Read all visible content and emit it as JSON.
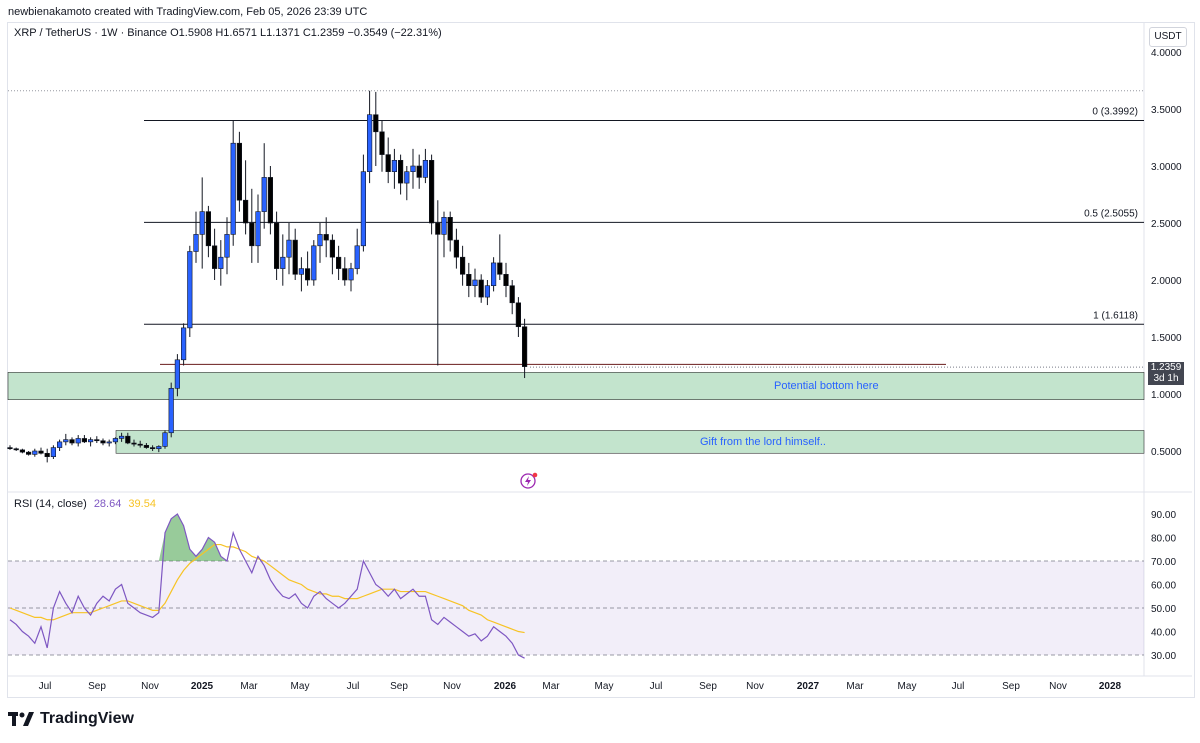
{
  "header": {
    "attribution": "newbienakamoto created with TradingView.com, Feb 05, 2026 23:39 UTC"
  },
  "legend": {
    "symbol": "XRP / TetherUS · 1W · Binance",
    "ohlc": "O1.5908  H1.6571  L1.1371  C1.2359  −0.3549 (−22.31%)"
  },
  "currency": "USDT",
  "price_axis": [
    "4.0000",
    "3.5000",
    "3.0000",
    "2.5000",
    "2.0000",
    "1.5000",
    "1.0000",
    "0.5000"
  ],
  "current_price": {
    "value": "1.2359",
    "countdown": "3d 1h"
  },
  "fib_levels": [
    {
      "label": "0 (3.3992)",
      "price": 3.3992
    },
    {
      "label": "0.5 (2.5055)",
      "price": 2.5055
    },
    {
      "label": "1 (1.6118)",
      "price": 1.6118
    }
  ],
  "zones": [
    {
      "label": "Potential bottom here",
      "top": 1.19,
      "bottom": 0.95,
      "color": "#b9dfc4"
    },
    {
      "label": "Gift from the lord himself..",
      "top": 0.68,
      "bottom": 0.48,
      "color": "#b9dfc4"
    }
  ],
  "rsi": {
    "title": "RSI (14, close)",
    "value": "28.64",
    "ma_value": "39.54",
    "axis": [
      "90.00",
      "80.00",
      "70.00",
      "60.00",
      "50.00",
      "40.00",
      "30.00"
    ]
  },
  "time_axis": [
    "Jul",
    "Sep",
    "Nov",
    "2025",
    "Mar",
    "May",
    "Jul",
    "Sep",
    "Nov",
    "2026",
    "Mar",
    "May",
    "Jul",
    "Sep",
    "Nov",
    "2027",
    "Mar",
    "May",
    "Jul",
    "Sep",
    "Nov",
    "2028"
  ],
  "brand": "TradingView",
  "colors": {
    "up": "#2962ff",
    "down": "#000000",
    "rsi_line": "#7e57c2",
    "rsi_ma": "#f7c325",
    "zone": "#b9dfc4"
  },
  "chart_data": {
    "type": "candlestick",
    "title": "XRP / TetherUS · 1W · Binance",
    "ylim": [
      0.3,
      4.2
    ],
    "candles": [
      [
        0.53,
        0.55,
        0.51,
        0.52
      ],
      [
        0.52,
        0.53,
        0.5,
        0.51
      ],
      [
        0.51,
        0.52,
        0.48,
        0.49
      ],
      [
        0.49,
        0.5,
        0.46,
        0.47
      ],
      [
        0.47,
        0.52,
        0.45,
        0.5
      ],
      [
        0.5,
        0.53,
        0.47,
        0.48
      ],
      [
        0.48,
        0.52,
        0.4,
        0.45
      ],
      [
        0.45,
        0.55,
        0.43,
        0.53
      ],
      [
        0.53,
        0.6,
        0.5,
        0.58
      ],
      [
        0.58,
        0.65,
        0.55,
        0.6
      ],
      [
        0.6,
        0.62,
        0.55,
        0.57
      ],
      [
        0.57,
        0.64,
        0.54,
        0.61
      ],
      [
        0.61,
        0.64,
        0.57,
        0.58
      ],
      [
        0.58,
        0.62,
        0.54,
        0.6
      ],
      [
        0.6,
        0.63,
        0.57,
        0.59
      ],
      [
        0.59,
        0.61,
        0.55,
        0.57
      ],
      [
        0.57,
        0.6,
        0.54,
        0.58
      ],
      [
        0.58,
        0.62,
        0.56,
        0.61
      ],
      [
        0.61,
        0.66,
        0.58,
        0.63
      ],
      [
        0.63,
        0.66,
        0.56,
        0.57
      ],
      [
        0.57,
        0.6,
        0.54,
        0.56
      ],
      [
        0.56,
        0.59,
        0.53,
        0.55
      ],
      [
        0.55,
        0.57,
        0.52,
        0.53
      ],
      [
        0.53,
        0.55,
        0.5,
        0.52
      ],
      [
        0.52,
        0.55,
        0.49,
        0.54
      ],
      [
        0.54,
        0.68,
        0.52,
        0.66
      ],
      [
        0.66,
        1.1,
        0.62,
        1.05
      ],
      [
        1.05,
        1.35,
        0.98,
        1.3
      ],
      [
        1.3,
        1.62,
        1.25,
        1.58
      ],
      [
        1.58,
        2.3,
        1.5,
        2.25
      ],
      [
        2.25,
        2.6,
        2.15,
        2.4
      ],
      [
        2.4,
        2.9,
        2.1,
        2.6
      ],
      [
        2.6,
        2.65,
        2.2,
        2.3
      ],
      [
        2.3,
        2.45,
        2.0,
        2.1
      ],
      [
        2.1,
        2.35,
        1.95,
        2.2
      ],
      [
        2.2,
        2.55,
        2.05,
        2.4
      ],
      [
        2.4,
        3.4,
        2.3,
        3.2
      ],
      [
        3.2,
        3.3,
        2.6,
        2.7
      ],
      [
        2.7,
        3.05,
        2.4,
        2.5
      ],
      [
        2.5,
        2.8,
        2.15,
        2.3
      ],
      [
        2.3,
        2.75,
        2.15,
        2.6
      ],
      [
        2.6,
        3.2,
        2.45,
        2.9
      ],
      [
        2.9,
        3.0,
        2.4,
        2.5
      ],
      [
        2.5,
        2.6,
        2.0,
        2.1
      ],
      [
        2.1,
        2.4,
        1.95,
        2.2
      ],
      [
        2.2,
        2.5,
        2.05,
        2.35
      ],
      [
        2.35,
        2.45,
        2.0,
        2.05
      ],
      [
        2.05,
        2.2,
        1.9,
        2.1
      ],
      [
        2.1,
        2.25,
        1.95,
        2.0
      ],
      [
        2.0,
        2.35,
        1.95,
        2.3
      ],
      [
        2.3,
        2.5,
        2.15,
        2.4
      ],
      [
        2.4,
        2.55,
        2.2,
        2.35
      ],
      [
        2.35,
        2.4,
        2.05,
        2.2
      ],
      [
        2.2,
        2.3,
        2.0,
        2.1
      ],
      [
        2.1,
        2.2,
        1.95,
        2.0
      ],
      [
        2.0,
        2.15,
        1.9,
        2.1
      ],
      [
        2.1,
        2.45,
        2.05,
        2.3
      ],
      [
        2.3,
        3.1,
        2.25,
        2.95
      ],
      [
        2.95,
        3.66,
        2.85,
        3.45
      ],
      [
        3.45,
        3.65,
        3.0,
        3.3
      ],
      [
        3.3,
        3.4,
        2.95,
        3.1
      ],
      [
        3.1,
        3.25,
        2.85,
        2.95
      ],
      [
        2.95,
        3.15,
        2.8,
        3.05
      ],
      [
        3.05,
        3.1,
        2.75,
        2.85
      ],
      [
        2.85,
        3.0,
        2.7,
        2.95
      ],
      [
        2.95,
        3.15,
        2.8,
        3.0
      ],
      [
        3.0,
        3.1,
        2.8,
        2.9
      ],
      [
        2.9,
        3.15,
        2.85,
        3.05
      ],
      [
        3.05,
        3.1,
        2.4,
        2.5
      ],
      [
        2.5,
        2.7,
        1.25,
        2.4
      ],
      [
        2.4,
        2.6,
        2.2,
        2.55
      ],
      [
        2.55,
        2.6,
        2.25,
        2.35
      ],
      [
        2.35,
        2.45,
        2.1,
        2.2
      ],
      [
        2.2,
        2.3,
        1.95,
        2.05
      ],
      [
        2.05,
        2.15,
        1.85,
        1.95
      ],
      [
        1.95,
        2.1,
        1.85,
        2.0
      ],
      [
        2.0,
        2.05,
        1.8,
        1.85
      ],
      [
        1.85,
        2.0,
        1.78,
        1.95
      ],
      [
        1.95,
        2.2,
        1.9,
        2.15
      ],
      [
        2.15,
        2.4,
        2.0,
        2.05
      ],
      [
        2.05,
        2.15,
        1.85,
        1.95
      ],
      [
        1.95,
        2.0,
        1.7,
        1.8
      ],
      [
        1.8,
        1.85,
        1.5,
        1.59
      ],
      [
        1.59,
        1.66,
        1.14,
        1.24
      ]
    ],
    "rsi_values": [
      45,
      43,
      40,
      38,
      35,
      42,
      33,
      50,
      57,
      52,
      48,
      55,
      50,
      47,
      52,
      55,
      53,
      58,
      60,
      52,
      50,
      48,
      47,
      46,
      48,
      82,
      88,
      90,
      85,
      75,
      72,
      75,
      80,
      78,
      72,
      70,
      82,
      75,
      70,
      65,
      72,
      68,
      62,
      58,
      55,
      54,
      56,
      52,
      50,
      55,
      57,
      54,
      52,
      50,
      52,
      55,
      58,
      70,
      65,
      60,
      58,
      55,
      58,
      54,
      56,
      58,
      55,
      55,
      45,
      43,
      46,
      44,
      42,
      40,
      38,
      39,
      36,
      38,
      42,
      40,
      38,
      35,
      30,
      28.64
    ],
    "rsi_ma_values": [
      50,
      49,
      48,
      47,
      46,
      46,
      45,
      45,
      46,
      47,
      48,
      48,
      48,
      48,
      49,
      50,
      51,
      52,
      53,
      53,
      52,
      51,
      50,
      49,
      49,
      52,
      57,
      62,
      66,
      69,
      71,
      73,
      75,
      77,
      77,
      76,
      76,
      75,
      74,
      72,
      71,
      70,
      68,
      66,
      64,
      62,
      61,
      60,
      58,
      57,
      56,
      56,
      55,
      55,
      54,
      54,
      54,
      55,
      56,
      57,
      58,
      58,
      58,
      57,
      57,
      57,
      57,
      57,
      56,
      55,
      54,
      53,
      52,
      51,
      49,
      48,
      47,
      45,
      44,
      43,
      42,
      41,
      40,
      39.54
    ]
  }
}
